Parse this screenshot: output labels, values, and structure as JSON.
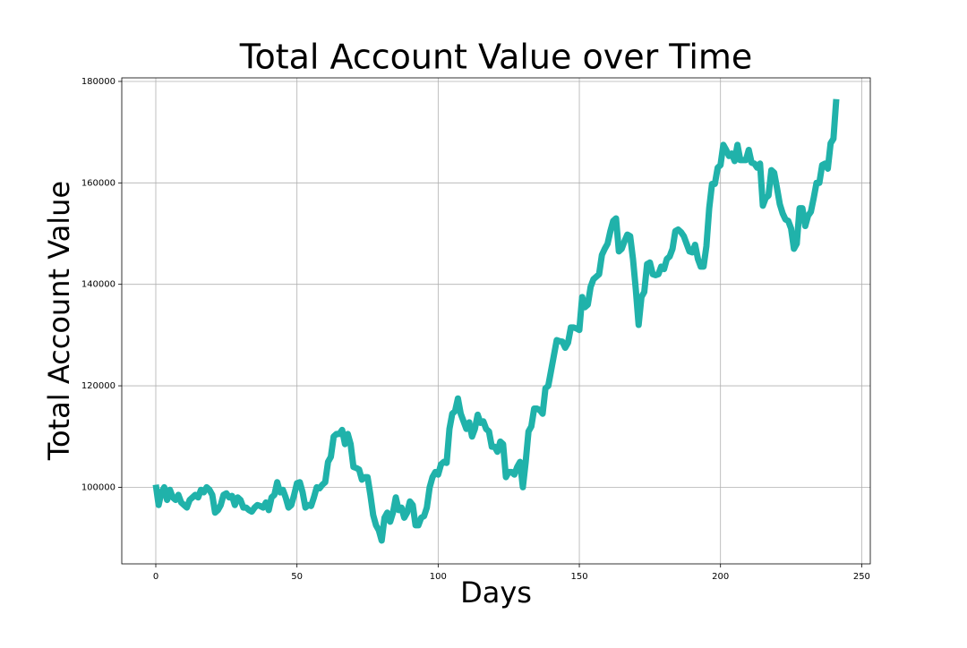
{
  "chart_data": {
    "type": "line",
    "title": "Total Account Value over Time",
    "x_label": "Days",
    "y_label": "Total Account Value",
    "xlim": [
      -12.05,
      253.05
    ],
    "xticks": [
      0,
      50,
      100,
      150,
      200,
      250
    ],
    "ylim": [
      84900,
      180700
    ],
    "yticks": [
      100000,
      120000,
      140000,
      160000,
      180000
    ],
    "grid": true,
    "x": [
      0,
      1,
      2,
      3,
      4,
      5,
      6,
      7,
      8,
      9,
      10,
      11,
      12,
      13,
      14,
      15,
      16,
      17,
      18,
      19,
      20,
      21,
      22,
      23,
      24,
      25,
      26,
      27,
      28,
      29,
      30,
      31,
      32,
      33,
      34,
      35,
      36,
      37,
      38,
      39,
      40,
      41,
      42,
      43,
      44,
      45,
      46,
      47,
      48,
      49,
      50,
      51,
      52,
      53,
      54,
      55,
      56,
      57,
      58,
      59,
      60,
      61,
      62,
      63,
      64,
      65,
      66,
      67,
      68,
      69,
      70,
      71,
      72,
      73,
      74,
      75,
      76,
      77,
      78,
      79,
      80,
      81,
      82,
      83,
      84,
      85,
      86,
      87,
      88,
      89,
      90,
      91,
      92,
      93,
      94,
      95,
      96,
      97,
      98,
      99,
      100,
      101,
      102,
      103,
      104,
      105,
      106,
      107,
      108,
      109,
      110,
      111,
      112,
      113,
      114,
      115,
      116,
      117,
      118,
      119,
      120,
      121,
      122,
      123,
      124,
      125,
      126,
      127,
      128,
      129,
      130,
      131,
      132,
      133,
      134,
      135,
      136,
      137,
      138,
      139,
      140,
      141,
      142,
      143,
      144,
      145,
      146,
      147,
      148,
      149,
      150,
      151,
      152,
      153,
      154,
      155,
      156,
      157,
      158,
      159,
      160,
      161,
      162,
      163,
      164,
      165,
      166,
      167,
      168,
      169,
      170,
      171,
      172,
      173,
      174,
      175,
      176,
      177,
      178,
      179,
      180,
      181,
      182,
      183,
      184,
      185,
      186,
      187,
      188,
      189,
      190,
      191,
      192,
      193,
      194,
      195,
      196,
      197,
      198,
      199,
      200,
      201,
      202,
      203,
      204,
      205,
      206,
      207,
      208,
      209,
      210,
      211,
      212,
      213,
      214,
      215,
      216,
      217,
      218,
      219,
      220,
      221,
      222,
      223,
      224,
      225,
      226,
      227,
      228,
      229,
      230,
      231,
      232,
      233,
      234,
      235,
      236,
      237,
      238,
      239,
      240,
      241
    ],
    "series": [
      {
        "name": "Total Account Value",
        "color": "#20b2aa",
        "values": [
          100500,
          96500,
          99000,
          100000,
          97500,
          99500,
          98000,
          97500,
          98500,
          97000,
          96500,
          96000,
          97500,
          98000,
          98500,
          98000,
          99500,
          99000,
          100000,
          99500,
          98500,
          95000,
          95500,
          96500,
          98500,
          98800,
          98000,
          98300,
          96500,
          98000,
          97500,
          96000,
          96000,
          95500,
          95200,
          96000,
          96500,
          96300,
          96000,
          97000,
          95500,
          98000,
          98500,
          101000,
          99000,
          99500,
          98000,
          96000,
          96500,
          98500,
          100800,
          101000,
          99000,
          96000,
          96500,
          96300,
          98000,
          100000,
          99800,
          100500,
          101000,
          105000,
          106000,
          110000,
          110500,
          110500,
          111300,
          108500,
          110500,
          108500,
          104000,
          103800,
          103500,
          101500,
          102000,
          102000,
          98500,
          94500,
          92500,
          91500,
          89500,
          94000,
          95000,
          93200,
          95000,
          98000,
          95500,
          96000,
          94000,
          95000,
          97200,
          96500,
          92500,
          92500,
          94000,
          94300,
          96000,
          100000,
          102000,
          103000,
          102500,
          104500,
          105000,
          104800,
          111500,
          114500,
          115000,
          117500,
          114500,
          113000,
          111500,
          112800,
          110000,
          111500,
          114300,
          112700,
          113000,
          111500,
          111000,
          108000,
          108000,
          107000,
          109000,
          108500,
          102000,
          103000,
          103000,
          102500,
          104000,
          105000,
          100000,
          105000,
          111000,
          112000,
          115500,
          115500,
          115200,
          114500,
          119500,
          120000,
          123000,
          126000,
          129000,
          128800,
          128700,
          127500,
          128500,
          131500,
          131500,
          131300,
          131000,
          137500,
          135500,
          136000,
          139500,
          141000,
          141500,
          142000,
          145800,
          147000,
          148000,
          150500,
          152500,
          153000,
          146500,
          147000,
          148500,
          149800,
          149500,
          145000,
          139000,
          132000,
          137500,
          138500,
          144000,
          144300,
          142000,
          141800,
          142000,
          143500,
          143000,
          145000,
          145500,
          147000,
          150500,
          150800,
          150300,
          149500,
          148000,
          146500,
          146300,
          147800,
          145000,
          143500,
          143500,
          147500,
          155000,
          159800,
          159800,
          163000,
          163500,
          167500,
          166500,
          165300,
          165800,
          164300,
          167500,
          164500,
          164500,
          164500,
          166500,
          164000,
          163800,
          163000,
          163800,
          155500,
          157000,
          157500,
          162500,
          162000,
          159000,
          155800,
          154000,
          152800,
          152500,
          151000,
          147000,
          148000,
          155000,
          155000,
          151500,
          153500,
          154300,
          157000,
          160000,
          160000,
          163500,
          163800,
          162800,
          167800,
          168700,
          176500
        ]
      }
    ]
  }
}
